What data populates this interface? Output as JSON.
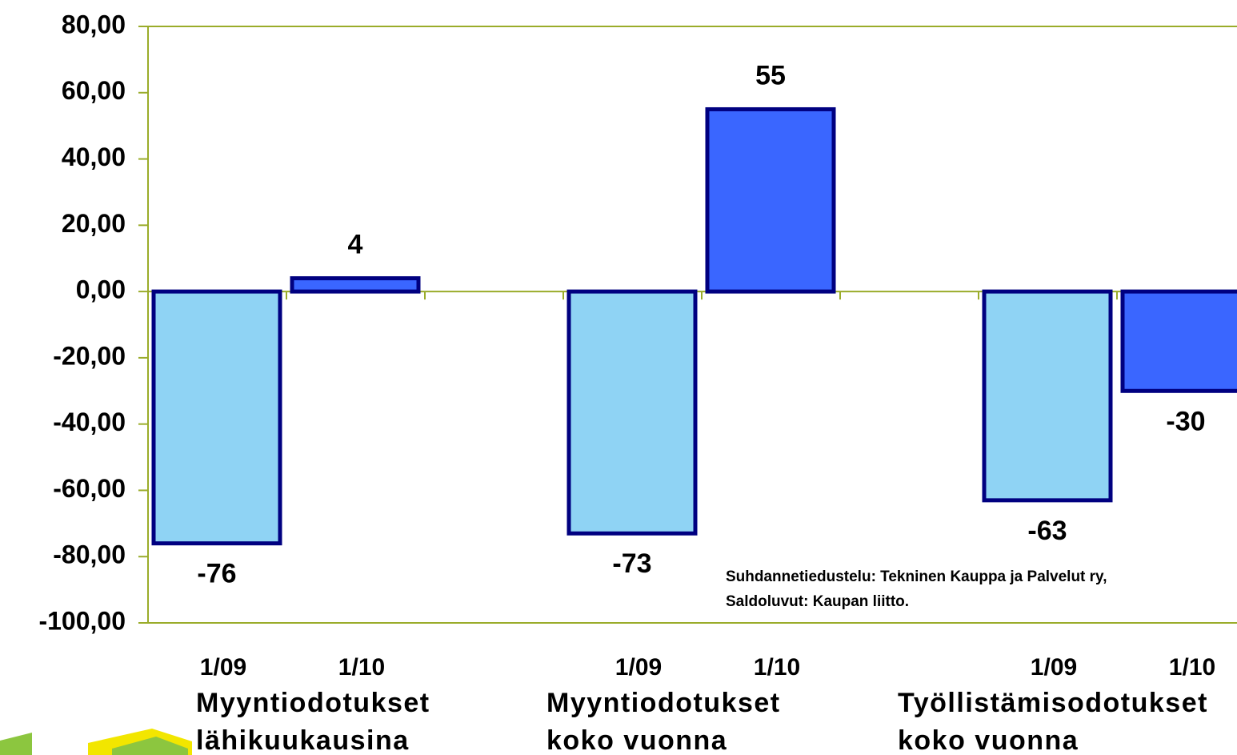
{
  "chart_data": {
    "type": "bar",
    "categories": [
      [
        "Myyntiodotukset",
        "lähikuukausina"
      ],
      [
        "Myyntiodotukset",
        "koko vuonna"
      ],
      [
        "Työllistämisodotukset",
        "koko vuonna"
      ]
    ],
    "series": [
      {
        "name": "1/09",
        "color": "#8fd3f4",
        "values": [
          -76,
          -73,
          -63
        ]
      },
      {
        "name": "1/10",
        "color": "#3a66ff",
        "values": [
          4,
          55,
          -30
        ]
      }
    ],
    "ylim": [
      -100,
      80
    ],
    "yticks": [
      {
        "value": -100,
        "label": "-100,00"
      },
      {
        "value": -80,
        "label": "-80,00"
      },
      {
        "value": -60,
        "label": "-60,00"
      },
      {
        "value": -40,
        "label": "-40,00"
      },
      {
        "value": -20,
        "label": "-20,00"
      },
      {
        "value": 0,
        "label": "0,00"
      },
      {
        "value": 20,
        "label": "20,00"
      },
      {
        "value": 40,
        "label": "40,00"
      },
      {
        "value": 60,
        "label": "60,00"
      },
      {
        "value": 80,
        "label": "80,00"
      }
    ],
    "annotations": [
      "Suhdannetiedustelu: Tekninen Kauppa ja Palvelut ry,",
      "Saldoluvut: Kaupan liitto."
    ]
  }
}
